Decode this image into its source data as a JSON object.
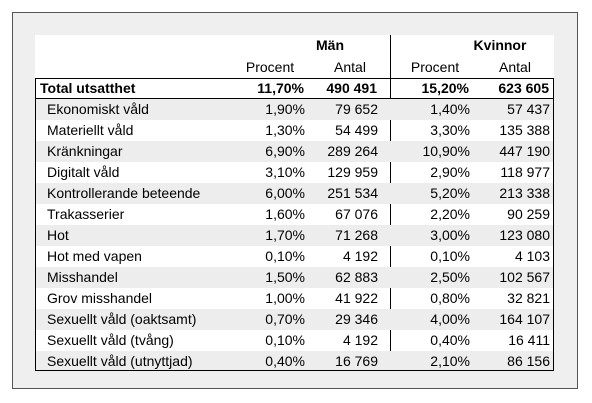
{
  "header": {
    "groups": [
      "Män",
      "Kvinnor"
    ],
    "columns": [
      "Procent",
      "Antal",
      "Procent",
      "Antal"
    ]
  },
  "table": {
    "rows": [
      [
        "Total utsatthet",
        "11,70%",
        "490 491",
        "15,20%",
        "623 605"
      ],
      [
        "Ekonomiskt våld",
        "1,90%",
        "79 652",
        "1,40%",
        "57 437"
      ],
      [
        "Materiellt våld",
        "1,30%",
        "54 499",
        "3,30%",
        "135 388"
      ],
      [
        "Kränkningar",
        "6,90%",
        "289 264",
        "10,90%",
        "447 190"
      ],
      [
        "Digitalt våld",
        "3,10%",
        "129 959",
        "2,90%",
        "118 977"
      ],
      [
        "Kontrollerande beteende",
        "6,00%",
        "251 534",
        "5,20%",
        "213 338"
      ],
      [
        "Trakasserier",
        "1,60%",
        "67 076",
        "2,20%",
        "90 259"
      ],
      [
        "Hot",
        "1,70%",
        "71 268",
        "3,00%",
        "123 080"
      ],
      [
        "Hot med vapen",
        "0,10%",
        "4 192",
        "0,10%",
        "4 103"
      ],
      [
        "Misshandel",
        "1,50%",
        "62 883",
        "2,50%",
        "102 567"
      ],
      [
        "Grov misshandel",
        "1,00%",
        "41 922",
        "0,80%",
        "32 821"
      ],
      [
        "Sexuellt våld (oaktsamt)",
        "0,70%",
        "29 346",
        "4,00%",
        "164 107"
      ],
      [
        "Sexuellt våld (tvång)",
        "0,10%",
        "4 192",
        "0,40%",
        "16 411"
      ],
      [
        "Sexuellt våld (utnyttjad)",
        "0,40%",
        "16 769",
        "2,10%",
        "86 156"
      ]
    ]
  }
}
